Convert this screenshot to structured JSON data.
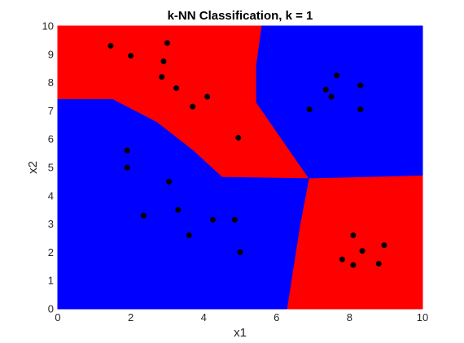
{
  "chart_data": {
    "type": "scatter",
    "title": "k-NN Classification, k = 1",
    "xlabel": "x1",
    "ylabel": "x2",
    "xlim": [
      0,
      10
    ],
    "ylim": [
      0,
      10
    ],
    "xticks": [
      "0",
      "2",
      "4",
      "6",
      "8",
      "10"
    ],
    "yticks": [
      "0",
      "1",
      "2",
      "3",
      "4",
      "5",
      "6",
      "7",
      "8",
      "9",
      "10"
    ],
    "grid": false,
    "region_colors": {
      "red": "#ff0000",
      "blue": "#0000ff"
    },
    "point_color": "#000000",
    "decision_regions": [
      {
        "color": "red",
        "polygon": [
          [
            0,
            10
          ],
          [
            5.6,
            10
          ],
          [
            5.45,
            8.6
          ],
          [
            5.45,
            7.3
          ],
          [
            6.9,
            4.6
          ],
          [
            4.5,
            4.65
          ],
          [
            3.7,
            5.6
          ],
          [
            2.7,
            6.6
          ],
          [
            1.5,
            7.4
          ],
          [
            0,
            7.4
          ]
        ]
      },
      {
        "color": "blue",
        "polygon": [
          [
            5.6,
            10
          ],
          [
            10,
            10
          ],
          [
            10,
            4.7
          ],
          [
            7.0,
            4.6
          ],
          [
            6.9,
            4.6
          ],
          [
            5.45,
            7.3
          ],
          [
            5.45,
            8.6
          ]
        ]
      },
      {
        "color": "blue",
        "polygon": [
          [
            0,
            7.4
          ],
          [
            1.5,
            7.4
          ],
          [
            2.7,
            6.6
          ],
          [
            3.7,
            5.6
          ],
          [
            4.5,
            4.65
          ],
          [
            6.9,
            4.6
          ],
          [
            6.65,
            2.9
          ],
          [
            6.3,
            0
          ],
          [
            0,
            0
          ]
        ]
      },
      {
        "color": "red",
        "polygon": [
          [
            6.9,
            4.6
          ],
          [
            7.0,
            4.6
          ],
          [
            10,
            4.7
          ],
          [
            10,
            0
          ],
          [
            6.3,
            0
          ],
          [
            6.65,
            2.9
          ]
        ]
      }
    ],
    "points": [
      {
        "x": 1.45,
        "y": 9.3
      },
      {
        "x": 2.0,
        "y": 8.95
      },
      {
        "x": 3.0,
        "y": 9.4
      },
      {
        "x": 2.9,
        "y": 8.75
      },
      {
        "x": 2.85,
        "y": 8.2
      },
      {
        "x": 3.25,
        "y": 7.8
      },
      {
        "x": 3.7,
        "y": 7.15
      },
      {
        "x": 4.1,
        "y": 7.5
      },
      {
        "x": 4.95,
        "y": 6.05
      },
      {
        "x": 7.65,
        "y": 8.25
      },
      {
        "x": 8.3,
        "y": 7.9
      },
      {
        "x": 7.35,
        "y": 7.75
      },
      {
        "x": 7.5,
        "y": 7.5
      },
      {
        "x": 6.9,
        "y": 7.05
      },
      {
        "x": 8.3,
        "y": 7.05
      },
      {
        "x": 1.9,
        "y": 5.6
      },
      {
        "x": 1.9,
        "y": 5.0
      },
      {
        "x": 3.05,
        "y": 4.5
      },
      {
        "x": 2.35,
        "y": 3.3
      },
      {
        "x": 3.3,
        "y": 3.5
      },
      {
        "x": 4.25,
        "y": 3.15
      },
      {
        "x": 4.85,
        "y": 3.15
      },
      {
        "x": 3.6,
        "y": 2.6
      },
      {
        "x": 5.0,
        "y": 2.0
      },
      {
        "x": 8.1,
        "y": 2.6
      },
      {
        "x": 8.95,
        "y": 2.25
      },
      {
        "x": 8.35,
        "y": 2.05
      },
      {
        "x": 7.8,
        "y": 1.75
      },
      {
        "x": 8.1,
        "y": 1.55
      },
      {
        "x": 8.8,
        "y": 1.6
      }
    ]
  }
}
